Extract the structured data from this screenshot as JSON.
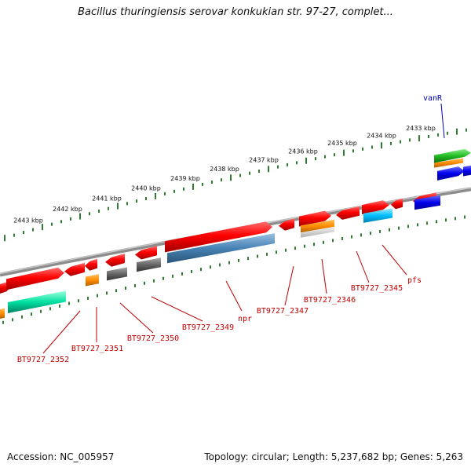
{
  "title": "Bacillus thuringiensis serovar konkukian str. 97-27, complet...",
  "footer": {
    "accession": "Accession: NC_005957",
    "topology": "Topology: circular; Length: 5,237,682 bp; Genes: 5,263"
  },
  "ruler_labels": [
    "2443 kbp",
    "2442 kbp",
    "2441 kbp",
    "2440 kbp",
    "2439 kbp",
    "2438 kbp",
    "2437 kbp",
    "2436 kbp",
    "2435 kbp",
    "2434 kbp",
    "2433 kbp"
  ],
  "gene_labels": [
    "vanR",
    "pfs",
    "BT9727_2345",
    "BT9727_2346",
    "BT9727_2347",
    "npr",
    "BT9727_2349",
    "BT9727_2350",
    "BT9727_2351",
    "BT9727_2352"
  ],
  "colors": {
    "red": "#ff0000",
    "steelblue": "#4682b4",
    "gray": "#666666",
    "orange": "#ff8c00",
    "cyan": "#00bfff",
    "green": "#22bb22",
    "mint": "#00e0a0",
    "blue": "#0000ee",
    "backbone": "#8c8c8c",
    "tick": "#2e7d32",
    "label_red": "#c00000",
    "label_blue": "#0000bb"
  }
}
